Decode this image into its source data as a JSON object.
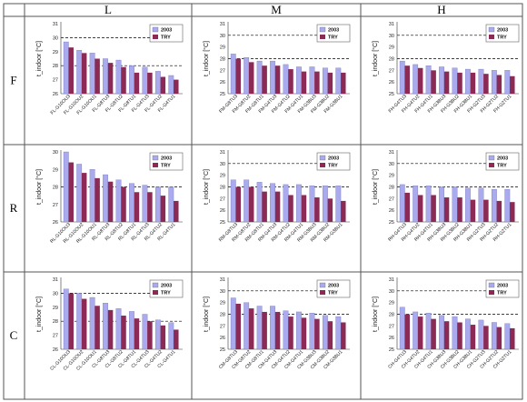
{
  "columns": [
    "L",
    "M",
    "H"
  ],
  "rows": [
    "F",
    "R",
    "C"
  ],
  "colors": {
    "s2003": "#aaaaee",
    "sTRY": "#8b2a55"
  },
  "chart_data": [
    {
      "type": "bar",
      "row": "F",
      "col": "L",
      "ylabel": "t_indoor [°C]",
      "ylim": [
        26,
        31
      ],
      "yticks": [
        26,
        27,
        28,
        29,
        30,
        31
      ],
      "dashed": [
        28,
        30
      ],
      "legend_position": "top-right",
      "categories": [
        "FL-G10OU3",
        "FL-G10OU2",
        "FL-G10OU1",
        "FL-G8TU3",
        "FL-G8TU2",
        "FL-G8TU1",
        "FL-G4TU3",
        "FL-G4TU2",
        "FL-G4TU1"
      ],
      "series": [
        {
          "name": "2003",
          "values": [
            29.7,
            29.1,
            28.9,
            28.5,
            28.4,
            28.0,
            27.9,
            27.6,
            27.3
          ]
        },
        {
          "name": "TRY",
          "values": [
            29.3,
            28.9,
            28.5,
            28.2,
            27.9,
            27.5,
            27.5,
            27.2,
            27.0
          ]
        }
      ]
    },
    {
      "type": "bar",
      "row": "F",
      "col": "M",
      "ylabel": "t_indoor [°C]",
      "ylim": [
        25,
        31
      ],
      "yticks": [
        25,
        26,
        27,
        28,
        29,
        30,
        31
      ],
      "dashed": [
        28,
        30
      ],
      "legend_position": "top-right",
      "categories": [
        "FM-G8TU3",
        "FM-G8TU2",
        "FM-G8TU1",
        "FM-G4TU3",
        "FM-G4TU2",
        "FM-G4TU1",
        "FM-G3BU3",
        "FM-G3BU2",
        "FM-G3BU1"
      ],
      "series": [
        {
          "name": "2003",
          "values": [
            28.4,
            28.1,
            27.8,
            27.8,
            27.5,
            27.3,
            27.3,
            27.2,
            27.2
          ]
        },
        {
          "name": "TRY",
          "values": [
            28.0,
            27.7,
            27.4,
            27.4,
            27.1,
            26.9,
            26.9,
            26.8,
            26.8
          ]
        }
      ]
    },
    {
      "type": "bar",
      "row": "F",
      "col": "H",
      "ylabel": "t_indoor [°C]",
      "ylim": [
        25,
        31
      ],
      "yticks": [
        25,
        26,
        27,
        28,
        29,
        30,
        31
      ],
      "dashed": [
        28,
        30
      ],
      "legend_position": "top-right",
      "categories": [
        "FH-G4TU3",
        "FH-G4TU2",
        "FH-G4TU1",
        "FH-G3BU3",
        "FH-G3BU2",
        "FH-G3BU1",
        "FH-G2TU3",
        "FH-G2TU2",
        "FH-G2TU1"
      ],
      "series": [
        {
          "name": "2003",
          "values": [
            27.8,
            27.5,
            27.4,
            27.3,
            27.2,
            27.1,
            27.1,
            27.0,
            27.0
          ]
        },
        {
          "name": "TRY",
          "values": [
            27.4,
            27.2,
            27.0,
            26.9,
            26.8,
            26.8,
            26.7,
            26.6,
            26.5
          ]
        }
      ]
    },
    {
      "type": "bar",
      "row": "R",
      "col": "L",
      "ylabel": "t_indoor [°C]",
      "ylim": [
        26,
        30
      ],
      "yticks": [
        26,
        27,
        28,
        29,
        30
      ],
      "dashed": [
        28
      ],
      "legend_position": "top-right",
      "categories": [
        "RL-G10OU3",
        "RL-G10OU2",
        "RL-G10OU1",
        "RL-G8TU3",
        "RL-G8TU2",
        "RL-G8TU1",
        "RL-G4TU3",
        "RL-G4TU2",
        "RL-G4TU1"
      ],
      "series": [
        {
          "name": "2003",
          "values": [
            30.0,
            29.3,
            29.0,
            28.7,
            28.4,
            28.2,
            28.1,
            28.0,
            28.0
          ]
        },
        {
          "name": "TRY",
          "values": [
            29.4,
            28.8,
            28.5,
            28.3,
            28.0,
            27.7,
            27.7,
            27.5,
            27.2
          ]
        }
      ]
    },
    {
      "type": "bar",
      "row": "R",
      "col": "M",
      "ylabel": "t_indoor [°C]",
      "ylim": [
        25,
        31
      ],
      "yticks": [
        25,
        26,
        27,
        28,
        29,
        30,
        31
      ],
      "dashed": [
        28,
        30
      ],
      "legend_position": "top-right",
      "categories": [
        "RM-G8TU3",
        "RM-G8TU2",
        "RM-G8TU1",
        "RM-G4TU3",
        "RM-G4TU2",
        "RM-G4TU1",
        "RM-G3BU3",
        "RM-G3BU2",
        "RM-G3BU1"
      ],
      "series": [
        {
          "name": "2003",
          "values": [
            28.6,
            28.6,
            28.4,
            28.3,
            28.2,
            28.2,
            28.1,
            28.1,
            28.1
          ]
        },
        {
          "name": "TRY",
          "values": [
            28.0,
            28.0,
            27.6,
            27.6,
            27.3,
            27.3,
            27.1,
            27.0,
            26.8
          ]
        }
      ]
    },
    {
      "type": "bar",
      "row": "R",
      "col": "H",
      "ylabel": "t_indoor [°C]",
      "ylim": [
        25,
        31
      ],
      "yticks": [
        25,
        26,
        27,
        28,
        29,
        30,
        31
      ],
      "dashed": [
        28,
        30
      ],
      "legend_position": "top-right",
      "categories": [
        "RH-G4TU3",
        "RH-G4TU2",
        "RH-G4TU1",
        "RH-G3BU3",
        "RH-G3BU2",
        "RH-G3BU1",
        "RH-G2TU3",
        "RH-G2TU2",
        "RH-G2TU1"
      ],
      "series": [
        {
          "name": "2003",
          "values": [
            28.2,
            28.1,
            28.1,
            28.0,
            28.0,
            27.9,
            27.9,
            27.8,
            27.8
          ]
        },
        {
          "name": "TRY",
          "values": [
            27.5,
            27.3,
            27.3,
            27.1,
            27.1,
            26.9,
            26.9,
            26.8,
            26.7
          ]
        }
      ]
    },
    {
      "type": "bar",
      "row": "C",
      "col": "L",
      "ylabel": "t_indoor [°C]",
      "ylim": [
        26,
        31
      ],
      "yticks": [
        26,
        27,
        28,
        29,
        30,
        31
      ],
      "dashed": [
        28,
        30
      ],
      "legend_position": "top-right",
      "categories": [
        "CL-G10OU3",
        "CL-G10OU2",
        "CL-G10OU1",
        "CL-G8TU3",
        "CL-G8TU2",
        "CL-G8TU1",
        "CL-G4TU3",
        "CL-G4TU2",
        "CL-G4TU1"
      ],
      "series": [
        {
          "name": "2003",
          "values": [
            30.3,
            30.0,
            29.7,
            29.3,
            28.9,
            28.7,
            28.5,
            28.1,
            27.9
          ]
        },
        {
          "name": "TRY",
          "values": [
            30.0,
            29.6,
            29.1,
            28.8,
            28.4,
            28.2,
            28.0,
            27.7,
            27.4
          ]
        }
      ]
    },
    {
      "type": "bar",
      "row": "C",
      "col": "M",
      "ylabel": "t_indoor [°C]",
      "ylim": [
        25,
        31
      ],
      "yticks": [
        25,
        26,
        27,
        28,
        29,
        30,
        31
      ],
      "dashed": [
        28,
        30
      ],
      "legend_position": "top-right",
      "categories": [
        "CM-G8TU3",
        "CM-G8TU2",
        "CM-G8TU1",
        "CM-G4TU3",
        "CM-G4TU2",
        "CM-G4TU1",
        "CM-G3BU3",
        "CM-G3BU2",
        "CM-G3BU1"
      ],
      "series": [
        {
          "name": "2003",
          "values": [
            29.4,
            29.0,
            28.7,
            28.7,
            28.3,
            28.2,
            28.1,
            27.9,
            27.8
          ]
        },
        {
          "name": "TRY",
          "values": [
            28.9,
            28.5,
            28.2,
            28.2,
            27.8,
            27.7,
            27.6,
            27.4,
            27.3
          ]
        }
      ]
    },
    {
      "type": "bar",
      "row": "C",
      "col": "H",
      "ylabel": "t_indoor [°C]",
      "ylim": [
        25,
        31
      ],
      "yticks": [
        25,
        26,
        27,
        28,
        29,
        30,
        31
      ],
      "dashed": [
        28,
        30
      ],
      "legend_position": "top-right",
      "categories": [
        "CH-G4TU3",
        "CH-G4TU2",
        "CH-G4TU1",
        "CH-G3BU3",
        "CH-G3BU2",
        "CH-G3BU1",
        "CH-G2TU3",
        "CH-G2TU2",
        "CH-G2TU1"
      ],
      "series": [
        {
          "name": "2003",
          "values": [
            28.6,
            28.2,
            28.1,
            27.9,
            27.8,
            27.6,
            27.5,
            27.3,
            27.2
          ]
        },
        {
          "name": "TRY",
          "values": [
            28.0,
            27.8,
            27.6,
            27.4,
            27.3,
            27.1,
            27.0,
            26.9,
            26.8
          ]
        }
      ]
    }
  ]
}
